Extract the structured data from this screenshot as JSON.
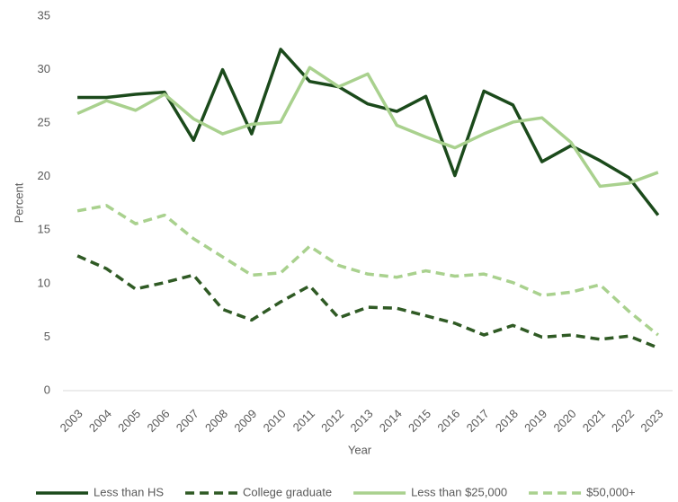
{
  "chart_data": {
    "type": "line",
    "x_label": "Year",
    "y_label": "Percent",
    "categories": [
      "2003",
      "2004",
      "2005",
      "2006",
      "2007",
      "2008",
      "2009",
      "2010",
      "2011",
      "2012",
      "2013",
      "2014",
      "2015",
      "2016",
      "2017",
      "2018",
      "2019",
      "2020",
      "2021",
      "2022",
      "2023"
    ],
    "series": [
      {
        "name": "Less than HS",
        "color": "#1b4a1b",
        "dashed": false,
        "values": [
          27.4,
          27.4,
          27.7,
          27.9,
          23.4,
          30.0,
          24.0,
          31.9,
          28.9,
          28.4,
          26.8,
          26.1,
          27.5,
          20.1,
          28.0,
          26.7,
          21.4,
          22.9,
          21.5,
          19.9,
          16.4
        ]
      },
      {
        "name": "College graduate",
        "color": "#2f5a24",
        "dashed": true,
        "values": [
          12.6,
          11.4,
          9.5,
          10.1,
          10.8,
          7.6,
          6.6,
          8.3,
          9.8,
          6.8,
          7.8,
          7.7,
          7.0,
          6.3,
          5.2,
          6.1,
          5.0,
          5.2,
          4.8,
          5.1,
          4.0
        ]
      },
      {
        "name": "Less than $25,000",
        "color": "#a9d18e",
        "dashed": false,
        "values": [
          25.9,
          27.1,
          26.2,
          27.7,
          25.4,
          24.0,
          24.9,
          25.1,
          30.2,
          28.4,
          29.6,
          24.8,
          23.7,
          22.7,
          24.0,
          25.1,
          25.5,
          23.2,
          19.1,
          19.4,
          20.4
        ]
      },
      {
        "name": "$50,000+",
        "color": "#a9d18e",
        "dashed": true,
        "values": [
          16.8,
          17.3,
          15.6,
          16.4,
          14.2,
          12.5,
          10.8,
          11.0,
          13.5,
          11.7,
          10.9,
          10.6,
          11.2,
          10.7,
          10.9,
          10.1,
          8.9,
          9.2,
          9.9,
          7.4,
          5.2
        ]
      }
    ],
    "ylim": [
      0,
      35
    ],
    "yticks": [
      0,
      5,
      10,
      15,
      20,
      25,
      30,
      35
    ],
    "grid": false,
    "legend": "bottom"
  }
}
